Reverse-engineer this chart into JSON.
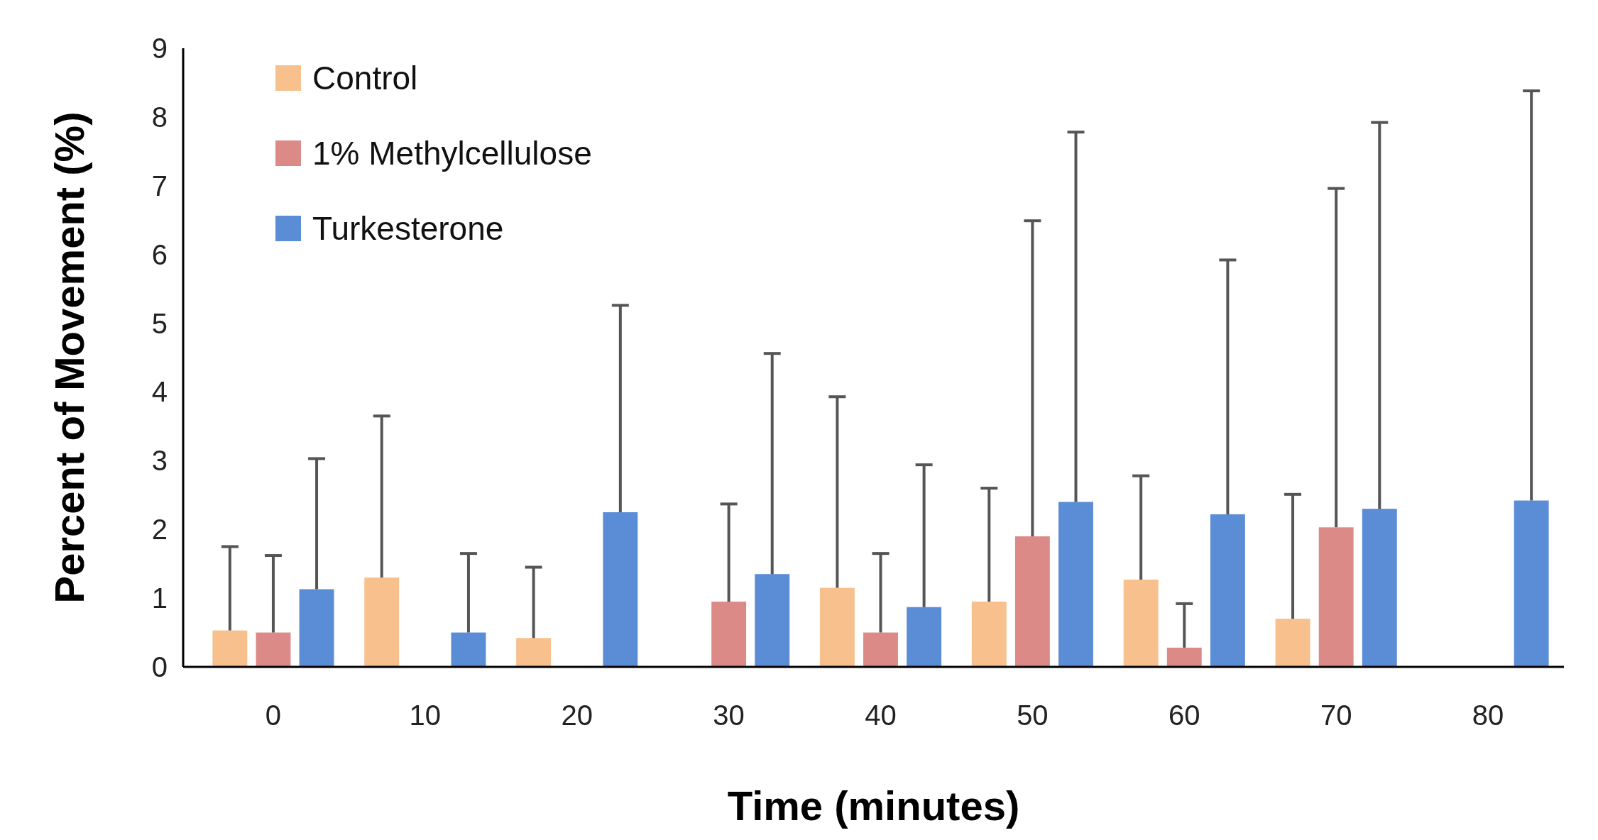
{
  "chart_data": {
    "type": "bar",
    "xlabel": "Time (minutes)",
    "ylabel": "Percent of Movement (%)",
    "categories": [
      "0",
      "10",
      "20",
      "30",
      "40",
      "50",
      "60",
      "70",
      "80"
    ],
    "series": [
      {
        "name": "Control",
        "color": "#f8c08c",
        "values": [
          0.53,
          1.3,
          0.42,
          null,
          1.15,
          0.95,
          1.27,
          0.7,
          null
        ],
        "errors": [
          [
            0.53,
            1.75
          ],
          [
            1.3,
            3.65
          ],
          [
            0.42,
            1.45
          ],
          null,
          [
            1.15,
            3.93
          ],
          [
            0.95,
            2.6
          ],
          [
            1.27,
            2.78
          ],
          [
            0.7,
            2.51
          ],
          null
        ]
      },
      {
        "name": "1% Methylcellulose",
        "color": "#dc8a88",
        "values": [
          0.5,
          null,
          null,
          0.95,
          0.5,
          1.9,
          0.28,
          2.03,
          null
        ],
        "errors": [
          [
            0.5,
            1.62
          ],
          null,
          null,
          [
            0.95,
            2.37
          ],
          [
            0.5,
            1.65
          ],
          [
            1.9,
            6.49
          ],
          [
            0.28,
            0.92
          ],
          [
            2.03,
            6.96
          ],
          null
        ]
      },
      {
        "name": "Turkesterone",
        "color": "#5b8cd6",
        "values": [
          1.13,
          0.5,
          2.25,
          1.35,
          0.87,
          2.4,
          2.22,
          2.3,
          2.42
        ],
        "errors": [
          [
            1.13,
            3.03
          ],
          [
            0.5,
            1.65
          ],
          [
            2.25,
            5.26
          ],
          [
            1.35,
            4.56
          ],
          [
            0.87,
            2.94
          ],
          [
            2.4,
            7.78
          ],
          [
            2.22,
            5.92
          ],
          [
            2.3,
            7.92
          ],
          [
            2.42,
            8.38
          ]
        ]
      }
    ],
    "ylim": [
      0,
      9
    ],
    "yticks": [
      0,
      1,
      2,
      3,
      4,
      5,
      6,
      7,
      8,
      9
    ],
    "grid": false,
    "legend": "top left"
  }
}
